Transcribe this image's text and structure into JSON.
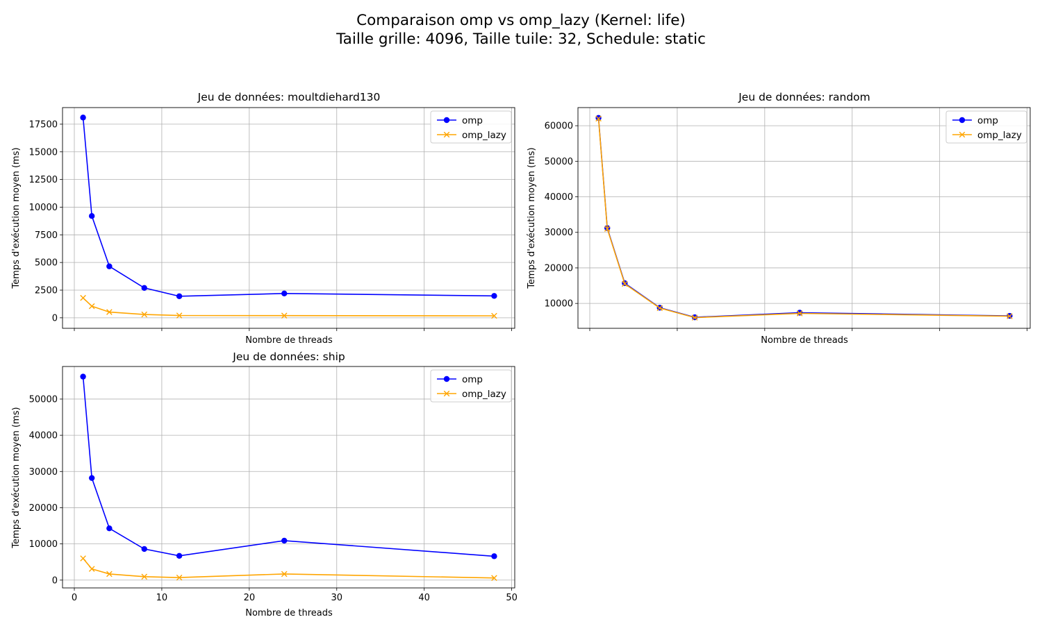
{
  "figure": {
    "title_line1": "Comparaison omp vs omp_lazy (Kernel: life)",
    "title_line2": "Taille grille: 4096, Taille tuile: 32, Schedule: static"
  },
  "colors": {
    "omp": "#0000ff",
    "omp_lazy": "#ffa500",
    "grid": "#b0b0b0"
  },
  "chart_data": [
    {
      "type": "line",
      "title": "Jeu de données: moultdiehard130",
      "xlabel": "Nombre de threads",
      "ylabel": "Temps d'exécution moyen (ms)",
      "xlim": [
        -1.35,
        50.35
      ],
      "ylim": [
        -950,
        19000
      ],
      "xticks": [
        0,
        10,
        20,
        30,
        40,
        50
      ],
      "show_xticklabels": false,
      "yticks": [
        0,
        2500,
        5000,
        7500,
        10000,
        12500,
        15000,
        17500
      ],
      "grid": true,
      "legend": "top-right",
      "x": [
        1,
        2,
        4,
        8,
        12,
        24,
        48
      ],
      "series": [
        {
          "name": "omp",
          "marker": "circle",
          "values": [
            18100,
            9200,
            4650,
            2700,
            1950,
            2200,
            1980
          ]
        },
        {
          "name": "omp_lazy",
          "marker": "x",
          "values": [
            1800,
            1050,
            520,
            300,
            210,
            200,
            180
          ]
        }
      ]
    },
    {
      "type": "line",
      "title": "Jeu de données: random",
      "xlabel": "Nombre de threads",
      "ylabel": "Temps d'exécution moyen (ms)",
      "xlim": [
        -1.35,
        50.35
      ],
      "ylim": [
        3000,
        65100
      ],
      "xticks": [
        0,
        10,
        20,
        30,
        40,
        50
      ],
      "show_xticklabels": false,
      "yticks": [
        10000,
        20000,
        30000,
        40000,
        50000,
        60000
      ],
      "grid": true,
      "legend": "top-right",
      "x": [
        1,
        2,
        4,
        8,
        12,
        24,
        48
      ],
      "series": [
        {
          "name": "omp",
          "marker": "circle",
          "values": [
            62200,
            31200,
            15700,
            8800,
            6100,
            7400,
            6500
          ]
        },
        {
          "name": "omp_lazy",
          "marker": "x",
          "values": [
            62000,
            31000,
            15500,
            8700,
            6000,
            7200,
            6400
          ]
        }
      ]
    },
    {
      "type": "line",
      "title": "Jeu de données: ship",
      "xlabel": "Nombre de threads",
      "ylabel": "Temps d'exécution moyen (ms)",
      "xlim": [
        -1.35,
        50.35
      ],
      "ylim": [
        -2150,
        59000
      ],
      "xticks": [
        0,
        10,
        20,
        30,
        40,
        50
      ],
      "show_xticklabels": true,
      "yticks": [
        0,
        10000,
        20000,
        30000,
        40000,
        50000
      ],
      "grid": true,
      "legend": "top-right",
      "x": [
        1,
        2,
        4,
        8,
        12,
        24,
        48
      ],
      "series": [
        {
          "name": "omp",
          "marker": "circle",
          "values": [
            56200,
            28200,
            14300,
            8600,
            6700,
            10900,
            6600
          ]
        },
        {
          "name": "omp_lazy",
          "marker": "x",
          "values": [
            6000,
            3100,
            1700,
            950,
            700,
            1700,
            600
          ]
        }
      ]
    }
  ]
}
